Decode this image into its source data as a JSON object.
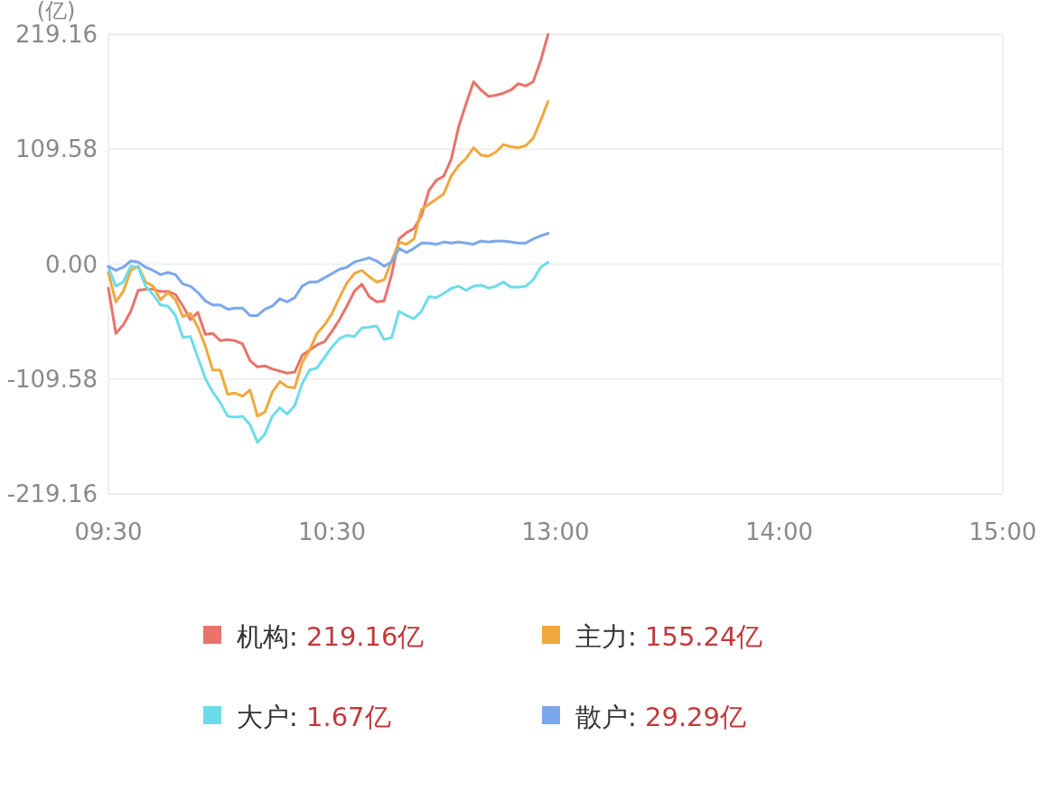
{
  "chart_data": {
    "type": "line",
    "ylabel": "(亿)",
    "categories": [
      "09:30",
      null,
      null,
      null,
      null,
      null,
      null,
      null,
      null,
      null,
      null,
      null,
      null,
      null,
      null,
      null,
      null,
      null,
      null,
      null,
      null,
      null,
      null,
      null,
      null,
      null,
      null,
      null,
      null,
      null,
      "10:30",
      null,
      null,
      null,
      null,
      null,
      null,
      null,
      null,
      null,
      null,
      null,
      null,
      null,
      null,
      null,
      null,
      null,
      null,
      null,
      null,
      null,
      null,
      null,
      null,
      null,
      null,
      null,
      null,
      null,
      "13:00",
      null,
      null,
      null,
      null,
      null,
      null,
      null,
      null,
      null,
      null,
      null,
      null,
      null,
      null,
      null,
      null,
      null,
      null,
      null,
      null,
      null,
      null,
      null,
      null,
      null,
      null,
      null,
      null,
      null,
      "14:00",
      null,
      null,
      null,
      null,
      null,
      null,
      null,
      null,
      null,
      null,
      null,
      null,
      null,
      null,
      null,
      null,
      null,
      null,
      null,
      null,
      null,
      null,
      null,
      null,
      null,
      null,
      null,
      null,
      null,
      "15:00"
    ],
    "series": [
      {
        "name": "机构:",
        "color": "#e8736b",
        "values": [
          -23,
          -66,
          -58,
          -45,
          -25,
          -24,
          -24,
          -26,
          -26,
          -29,
          -40,
          -53,
          -46,
          -67,
          -66,
          -73,
          -72,
          -73,
          -76,
          -92,
          -98,
          -97,
          -100,
          -102,
          -104,
          -103,
          -87,
          -82,
          -77,
          -74,
          -64,
          -53,
          -40,
          -26,
          -19,
          -31,
          -36,
          -35,
          -10,
          24,
          30,
          34,
          46,
          70,
          80,
          84,
          100,
          131,
          153,
          174,
          166,
          160,
          161,
          163,
          166,
          172,
          170,
          174,
          194,
          219.16,
          null,
          null,
          null,
          null,
          null,
          null,
          null,
          null,
          null,
          null,
          null,
          null,
          null,
          null,
          null,
          null,
          null,
          null,
          null,
          null,
          null,
          null,
          null,
          null,
          null,
          null,
          null,
          null,
          null,
          null,
          null,
          null,
          null,
          null,
          null,
          null,
          null,
          null,
          null,
          null,
          null,
          null,
          null,
          null,
          null,
          null,
          null,
          null,
          null,
          null,
          null,
          null,
          null,
          null,
          null,
          null,
          null,
          null,
          null,
          null,
          null
        ]
      },
      {
        "name": "主力:",
        "color": "#f0a83c",
        "values": [
          -8,
          -36,
          -26,
          -6,
          -2,
          -17,
          -21,
          -34,
          -27,
          -34,
          -50,
          -47,
          -60,
          -78,
          -101,
          -101,
          -124,
          -123,
          -126,
          -120,
          -145,
          -141,
          -122,
          -112,
          -117,
          -118,
          -94,
          -82,
          -66,
          -58,
          -47,
          -32,
          -18,
          -9,
          -6,
          -12,
          -17,
          -15,
          3,
          21,
          19,
          24,
          52,
          57,
          62,
          67,
          84,
          94,
          101,
          111,
          104,
          103,
          107,
          114,
          112,
          111,
          113,
          120,
          137,
          155.24,
          null,
          null,
          null,
          null,
          null,
          null,
          null,
          null,
          null,
          null,
          null,
          null,
          null,
          null,
          null,
          null,
          null,
          null,
          null,
          null,
          null,
          null,
          null,
          null,
          null,
          null,
          null,
          null,
          null,
          null,
          null,
          null,
          null,
          null,
          null,
          null,
          null,
          null,
          null,
          null,
          null,
          null,
          null,
          null,
          null,
          null,
          null,
          null,
          null,
          null,
          null,
          null,
          null,
          null,
          null,
          null,
          null,
          null,
          null,
          null,
          null
        ]
      },
      {
        "name": "大户:",
        "color": "#6ddcea",
        "values": [
          -3,
          -21,
          -17,
          -2,
          -3,
          -21,
          -29,
          -39,
          -40,
          -49,
          -70,
          -69,
          -89,
          -109,
          -122,
          -132,
          -145,
          -146,
          -145,
          -153,
          -170,
          -162,
          -145,
          -137,
          -143,
          -135,
          -114,
          -101,
          -99,
          -89,
          -79,
          -71,
          -68,
          -69,
          -61,
          -60,
          -59,
          -72,
          -70,
          -45,
          -49,
          -52,
          -45,
          -31,
          -32,
          -28,
          -23,
          -21,
          -25,
          -21,
          -20,
          -23,
          -21,
          -17,
          -22,
          -22,
          -21,
          -15,
          -3,
          1.67,
          null,
          null,
          null,
          null,
          null,
          null,
          null,
          null,
          null,
          null,
          null,
          null,
          null,
          null,
          null,
          null,
          null,
          null,
          null,
          null,
          null,
          null,
          null,
          null,
          null,
          null,
          null,
          null,
          null,
          null,
          null,
          null,
          null,
          null,
          null,
          null,
          null,
          null,
          null,
          null,
          null,
          null,
          null,
          null,
          null,
          null,
          null,
          null,
          null,
          null,
          null,
          null,
          null,
          null,
          null,
          null,
          null,
          null,
          null,
          null,
          null
        ]
      },
      {
        "name": "散户:",
        "color": "#7ba7ec",
        "values": [
          -2,
          -6,
          -3,
          3,
          2,
          -3,
          -6,
          -10,
          -8,
          -10,
          -19,
          -21,
          -27,
          -35,
          -39,
          -39,
          -43,
          -42,
          -42,
          -49,
          -49,
          -43,
          -40,
          -33,
          -36,
          -32,
          -21,
          -17,
          -17,
          -13,
          -9,
          -5,
          -3,
          2,
          4,
          6,
          3,
          -2,
          2,
          15,
          11,
          15,
          20,
          20,
          19,
          21,
          20,
          21,
          20,
          19,
          22,
          21,
          22,
          22,
          21,
          20,
          20,
          24,
          27,
          29.29,
          null,
          null,
          null,
          null,
          null,
          null,
          null,
          null,
          null,
          null,
          null,
          null,
          null,
          null,
          null,
          null,
          null,
          null,
          null,
          null,
          null,
          null,
          null,
          null,
          null,
          null,
          null,
          null,
          null,
          null,
          null,
          null,
          null,
          null,
          null,
          null,
          null,
          null,
          null,
          null,
          null,
          null,
          null,
          null,
          null,
          null,
          null,
          null,
          null,
          null,
          null,
          null,
          null,
          null,
          null,
          null,
          null,
          null,
          null,
          null,
          null
        ]
      }
    ],
    "annotations": [
      "219.16亿",
      "155.24亿",
      "1.67亿",
      "29.29亿"
    ],
    "ylim": [
      -219.16,
      219.16
    ],
    "yticks": [
      219.16,
      109.58,
      {
        "value": 0,
        "label": "0.00"
      },
      -109.58,
      -219.16
    ],
    "grid": "y",
    "legend": "bottom",
    "marker": "none",
    "line_style": "solid"
  }
}
